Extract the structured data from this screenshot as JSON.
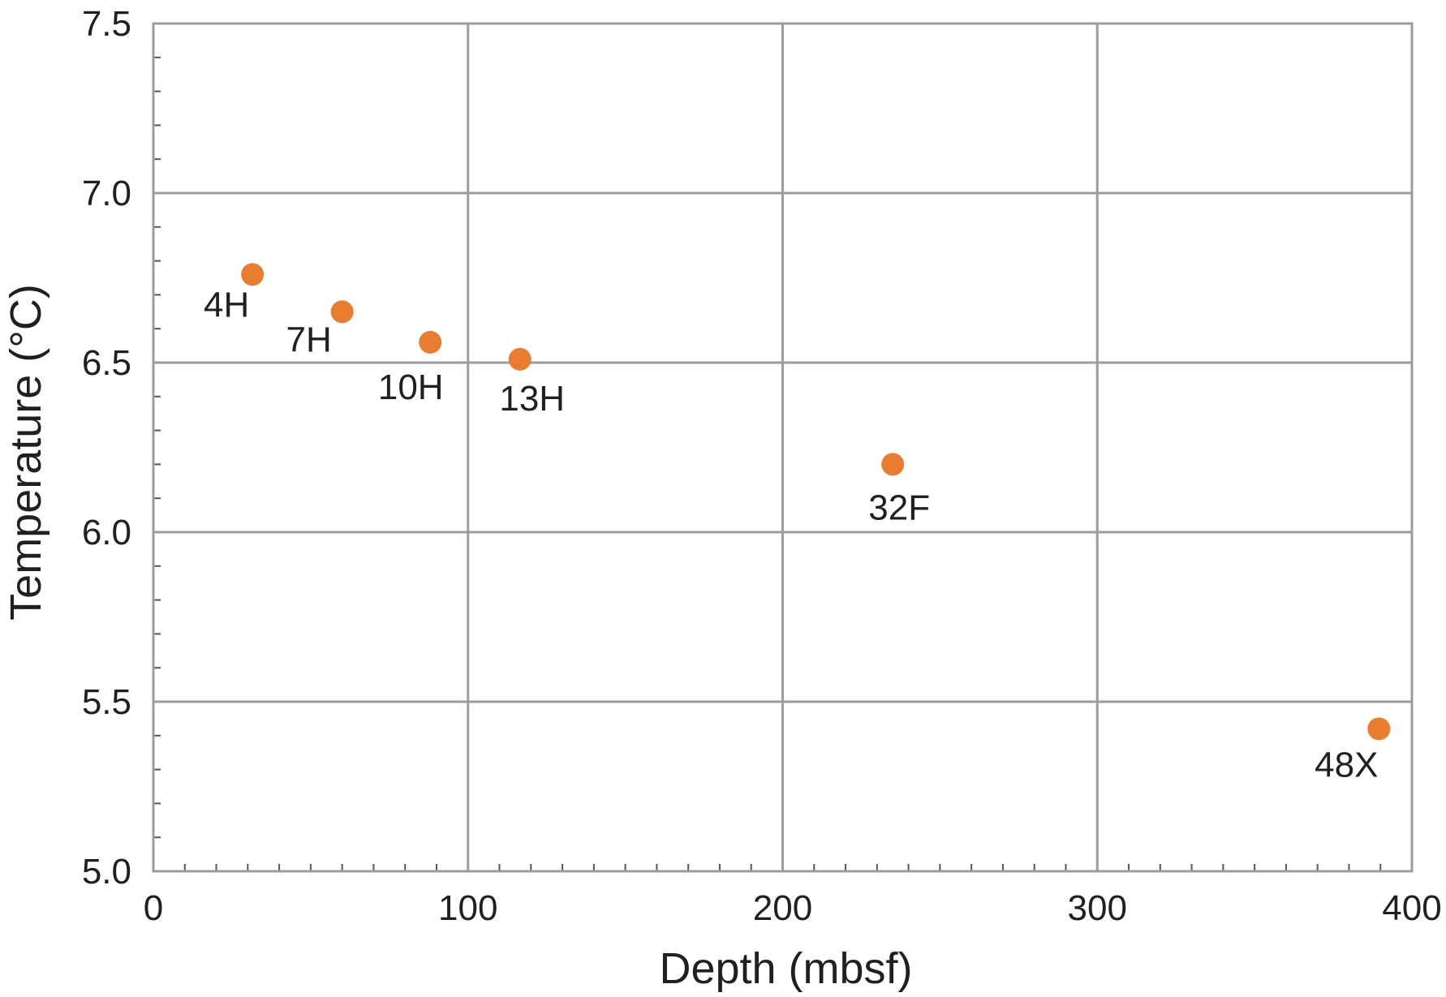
{
  "chart_data": {
    "type": "scatter",
    "title": "",
    "xlabel": "Depth (mbsf)",
    "ylabel": "Temperature (°C)",
    "xlim": [
      0,
      400
    ],
    "ylim": [
      5.0,
      7.5
    ],
    "x_ticks": [
      0,
      100,
      200,
      300,
      400
    ],
    "x_tick_labels": [
      "0",
      "100",
      "200",
      "300",
      "400"
    ],
    "y_ticks": [
      5.0,
      5.5,
      6.0,
      6.5,
      7.0,
      7.5
    ],
    "y_tick_labels": [
      "5.0",
      "5.5",
      "6.0",
      "6.5",
      "7.0",
      "7.5"
    ],
    "grid": true,
    "legend": "none",
    "marker_color": "#e87d2f",
    "grid_color": "#9d9c9c",
    "points": [
      {
        "label": "4H",
        "x": 31.5,
        "y": 6.76
      },
      {
        "label": "7H",
        "x": 60,
        "y": 6.65
      },
      {
        "label": "10H",
        "x": 88,
        "y": 6.56
      },
      {
        "label": "13H",
        "x": 116.5,
        "y": 6.51
      },
      {
        "label": "32F",
        "x": 235,
        "y": 6.2
      },
      {
        "label": "48X",
        "x": 389.5,
        "y": 5.42
      }
    ]
  }
}
